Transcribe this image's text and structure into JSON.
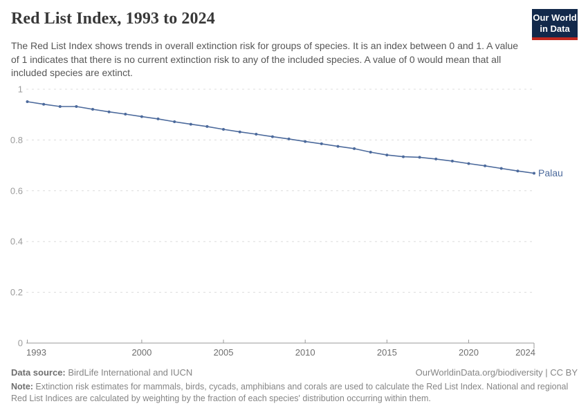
{
  "header": {
    "title": "Red List Index, 1993 to 2024",
    "subtitle": "The Red List Index shows trends in overall extinction risk for groups of species. It is an index between 0 and 1. A value of 1 indicates that there is no current extinction risk to any of the included species. A value of 0 would mean that all included species are extinct.",
    "logo": {
      "line1": "Our World",
      "line2": "in Data",
      "bg_color": "#12294b",
      "accent_color": "#c0281e"
    }
  },
  "chart_data": {
    "type": "line",
    "title": "Red List Index, 1993 to 2024",
    "xlabel": "",
    "ylabel": "",
    "xlim": [
      1993,
      2024
    ],
    "ylim": [
      0,
      1
    ],
    "x_ticks": [
      1993,
      2000,
      2005,
      2010,
      2015,
      2020,
      2024
    ],
    "y_ticks": [
      0,
      0.2,
      0.4,
      0.6,
      0.8,
      1
    ],
    "grid": "horizontal-dashed",
    "grid_color": "#dcdcdc",
    "axis_color": "#9a9a9a",
    "legend_position": "end-of-line",
    "series": [
      {
        "name": "Palau",
        "color": "#4c6a9c",
        "x": [
          1993,
          1994,
          1995,
          1996,
          1997,
          1998,
          1999,
          2000,
          2001,
          2002,
          2003,
          2004,
          2005,
          2006,
          2007,
          2008,
          2009,
          2010,
          2011,
          2012,
          2013,
          2014,
          2015,
          2016,
          2017,
          2018,
          2019,
          2020,
          2021,
          2022,
          2023,
          2024
        ],
        "values": [
          0.951,
          0.941,
          0.932,
          0.932,
          0.921,
          0.911,
          0.902,
          0.892,
          0.883,
          0.872,
          0.862,
          0.853,
          0.842,
          0.832,
          0.823,
          0.813,
          0.804,
          0.794,
          0.785,
          0.775,
          0.766,
          0.752,
          0.741,
          0.734,
          0.732,
          0.725,
          0.717,
          0.707,
          0.698,
          0.688,
          0.678,
          0.669
        ]
      }
    ]
  },
  "footer": {
    "datasource_label": "Data source:",
    "datasource_text": " BirdLife International and IUCN",
    "link": "OurWorldinData.org/biodiversity | CC BY",
    "note_label": "Note:",
    "note_text": " Extinction risk estimates for mammals, birds, cycads, amphibians and corals are used to calculate the Red List Index. National and regional Red List Indices are calculated by weighting by the fraction of each species' distribution occurring within them."
  }
}
